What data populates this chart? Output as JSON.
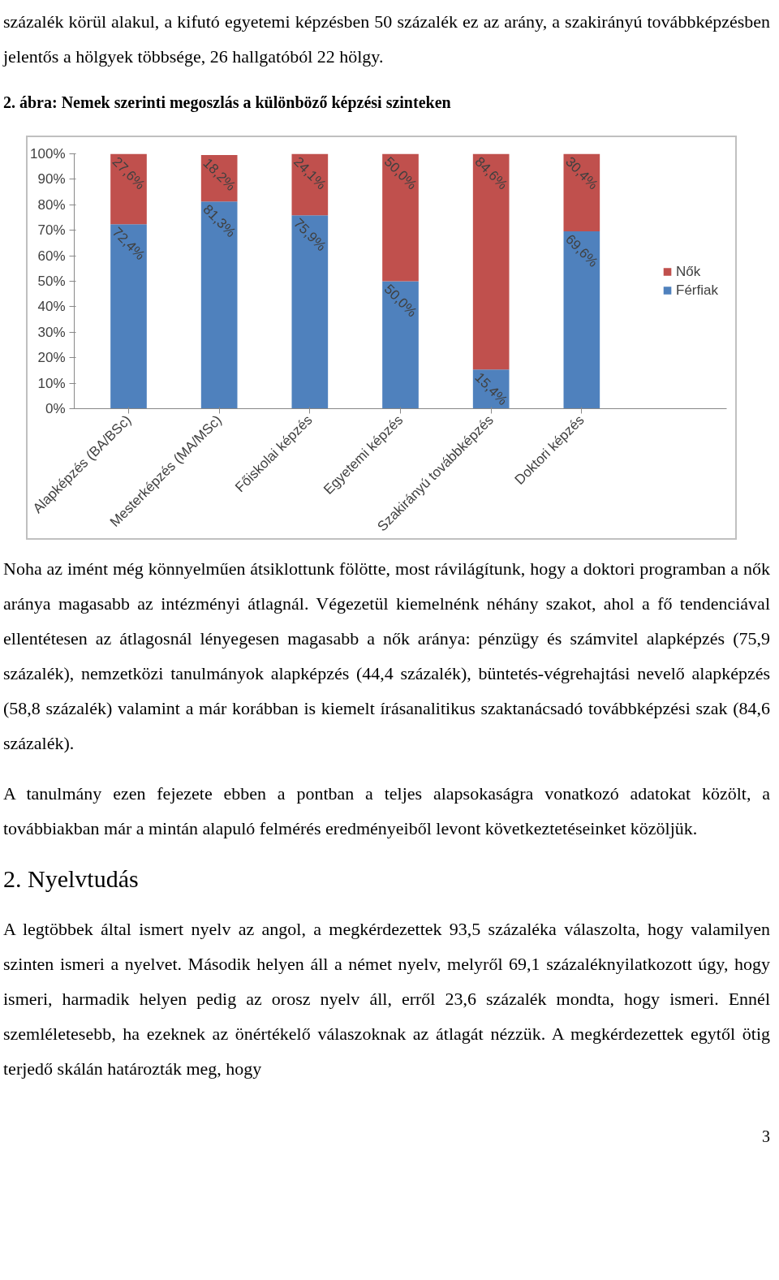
{
  "chart_data": {
    "type": "bar",
    "title": "2. ábra: Nemek szerinti megoszlás a különböző képzési szinteken",
    "categories": [
      "Alapképzés (BA/BSc)",
      "Mesterképzés (MA/MSc)",
      "Főiskolai képzés",
      "Egyetemi képzés",
      "Szakirányú továbbképzés",
      "Doktori képzés"
    ],
    "stacked": true,
    "legend": "right",
    "grid": false,
    "series": [
      {
        "name": "Férfiak",
        "color": "#4f81bd",
        "values": [
          72.4,
          81.3,
          75.9,
          50.0,
          15.4,
          69.6
        ],
        "value_labels": [
          "72,4%",
          "81,3%",
          "75,9%",
          "50,0%",
          "15,4%",
          "69,6%"
        ]
      },
      {
        "name": "Nők",
        "color": "#c0504d",
        "values": [
          27.6,
          18.2,
          24.1,
          50.0,
          84.6,
          30.4
        ],
        "value_labels": [
          "27,6%",
          "18,2%",
          "24,1%",
          "50,0%",
          "84,6%",
          "30,4%"
        ]
      }
    ],
    "ylim": [
      0,
      100
    ],
    "yticks": [
      {
        "value": 0,
        "label": "0%"
      },
      {
        "value": 10,
        "label": "10%"
      },
      {
        "value": 20,
        "label": "20%"
      },
      {
        "value": 30,
        "label": "30%"
      },
      {
        "value": 40,
        "label": "40%"
      },
      {
        "value": 50,
        "label": "50%"
      },
      {
        "value": 60,
        "label": "60%"
      },
      {
        "value": 70,
        "label": "70%"
      },
      {
        "value": 80,
        "label": "80%"
      },
      {
        "value": 90,
        "label": "90%"
      },
      {
        "value": 100,
        "label": "100%"
      }
    ],
    "annotations": [
      "százalék körül alakul, a kifutó egyetemi képzésben 50 százalék ez az arány, a szakirányú továbbképzésben jelentős a hölgyek többsége, 26 hallgatóból 22 hölgy.",
      "Noha az imént még könnyelműen átsiklottunk fölötte, most rávilágítunk, hogy a doktori programban a nők aránya magasabb az intézményi átlagnál. Végezetül kiemelnénk néhány szakot, ahol a fő tendenciával ellentétesen az átlagosnál lényegesen magasabb a nők aránya: pénzügy és számvitel alapképzés (75,9 százalék), nemzetközi tanulmányok alapképzés (44,4 százalék), büntetés-végrehajtási nevelő alapképzés (58,8 százalék) valamint a már korábban is kiemelt írásanalitikus szaktanácsadó továbbképzési szak (84,6 százalék).",
      "A tanulmány ezen fejezete ebben a pontban a teljes alapsokaságra vonatkozó adatokat közölt, a továbbiakban már a mintán alapuló felmérés eredményeiből levont következtetéseinket közöljük.",
      "2. Nyelvtudás",
      "A legtöbbek által ismert nyelv az angol, a megkérdezettek 93,5 százaléka válaszolta, hogy valamilyen szinten ismeri a nyelvet. Második helyen áll a német nyelv, melyről 69,1 százaléknyilatkozott úgy, hogy ismeri, harmadik helyen pedig az orosz nyelv áll, erről 23,6 százalék mondta, hogy ismeri. Ennél szemléletesebb, ha ezeknek az önértékelő válaszoknak az átlagát nézzük. A megkérdezettek egytől ötig terjedő skálán határozták meg, hogy",
      "3"
    ]
  }
}
